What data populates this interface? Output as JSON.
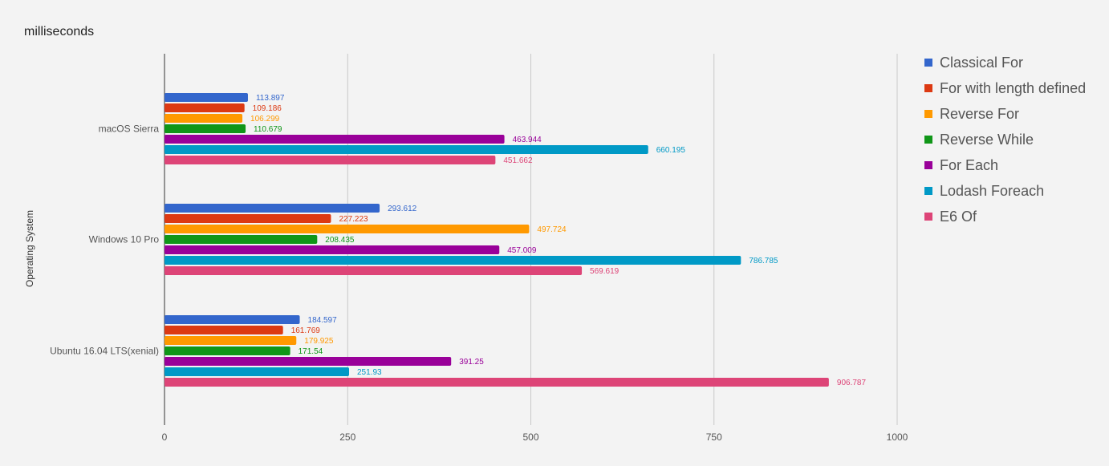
{
  "chart_data": {
    "type": "bar",
    "orientation": "horizontal",
    "title": "milliseconds",
    "ylabel": "Operating System",
    "xlabel": "",
    "categories": [
      "macOS Sierra",
      "Windows 10 Pro",
      "Ubuntu 16.04 LTS(xenial)"
    ],
    "xlim": [
      0,
      1000
    ],
    "ticks": [
      0,
      250,
      500,
      750,
      1000
    ],
    "tick_labels": [
      "0",
      "250",
      "500",
      "750",
      "1000"
    ],
    "grid": true,
    "legend_position": "right",
    "series": [
      {
        "name": "Classical For",
        "color": "#3366cc",
        "values": [
          113.897,
          293.612,
          184.597
        ],
        "labels": [
          "113.897",
          "293.612",
          "184.597"
        ]
      },
      {
        "name": "For with length defined",
        "color": "#dc3912",
        "values": [
          109.186,
          227.223,
          161.769
        ],
        "labels": [
          "109.186",
          "227.223",
          "161.769"
        ]
      },
      {
        "name": "Reverse For",
        "color": "#ff9900",
        "values": [
          106.299,
          497.724,
          179.925
        ],
        "labels": [
          "106.299",
          "497.724",
          "179.925"
        ]
      },
      {
        "name": "Reverse While",
        "color": "#109618",
        "values": [
          110.679,
          208.435,
          171.54
        ],
        "labels": [
          "110.679",
          "208.435",
          "171.54"
        ]
      },
      {
        "name": "For Each",
        "color": "#990099",
        "values": [
          463.944,
          457.009,
          391.25
        ],
        "labels": [
          "463.944",
          "457.009",
          "391.25"
        ]
      },
      {
        "name": "Lodash Foreach",
        "color": "#0099c6",
        "values": [
          660.195,
          786.785,
          251.93
        ],
        "labels": [
          "660.195",
          "786.785",
          "251.93"
        ]
      },
      {
        "name": "E6 Of",
        "color": "#dd4477",
        "values": [
          451.662,
          569.619,
          906.787
        ],
        "labels": [
          "451.662",
          "569.619",
          "906.787"
        ]
      }
    ]
  }
}
